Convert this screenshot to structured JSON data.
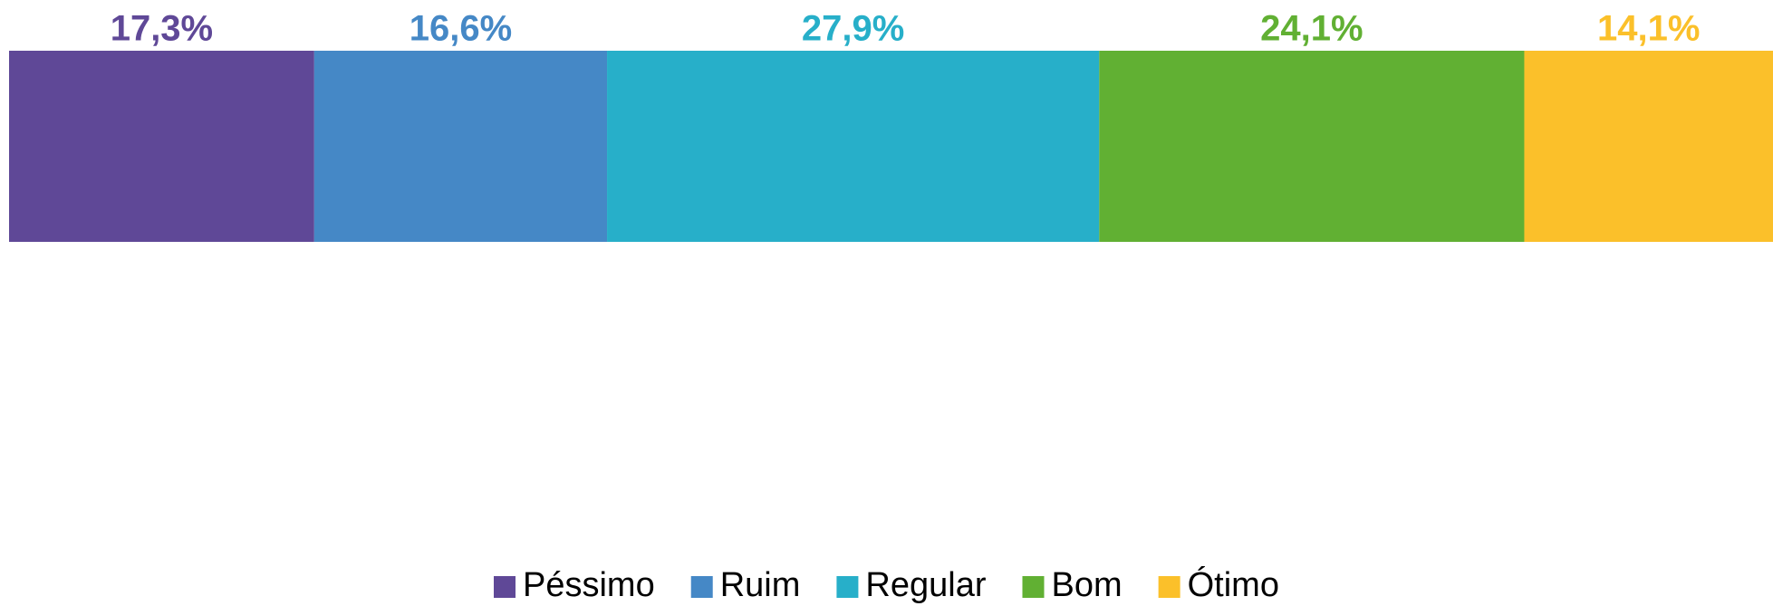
{
  "chart_data": {
    "type": "stacked_bar",
    "orientation": "horizontal",
    "legend": "bottom",
    "series": [
      {
        "name": "Péssimo",
        "color": "#5f4897",
        "values": [
          17.3
        ],
        "value_labels": [
          "17,3%"
        ]
      },
      {
        "name": "Ruim",
        "color": "#4588c6",
        "values": [
          16.6
        ],
        "value_labels": [
          "16,6%"
        ]
      },
      {
        "name": "Regular",
        "color": "#27afc9",
        "values": [
          27.9
        ],
        "value_labels": [
          "27,9%"
        ]
      },
      {
        "name": "Bom",
        "color": "#61b033",
        "values": [
          24.1
        ],
        "value_labels": [
          "24,1%"
        ]
      },
      {
        "name": "Ótimo",
        "color": "#fbc02a",
        "values": [
          14.1
        ],
        "value_labels": [
          "14,1%"
        ]
      }
    ]
  }
}
